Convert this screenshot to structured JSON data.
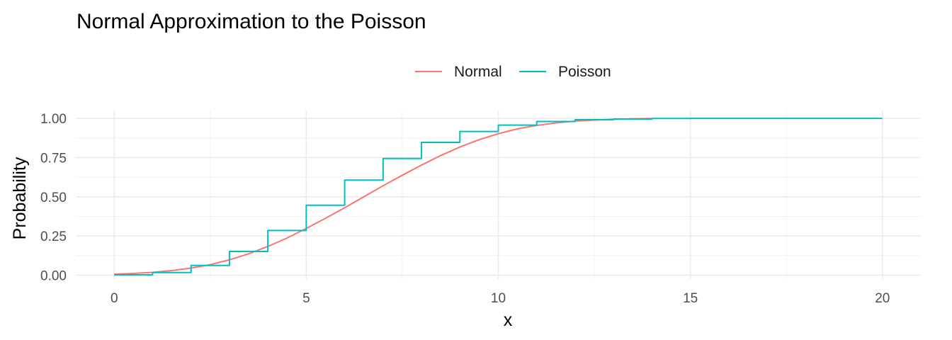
{
  "chart_data": {
    "type": "line",
    "title": "Normal Approximation to the Poisson",
    "xlabel": "x",
    "ylabel": "Probability",
    "xlim": [
      -1,
      21
    ],
    "ylim": [
      -0.025,
      1.05
    ],
    "x_ticks": [
      0,
      5,
      10,
      15,
      20
    ],
    "y_ticks": [
      0.0,
      0.25,
      0.5,
      0.75,
      1.0
    ],
    "x_tick_labels": [
      "0",
      "5",
      "10",
      "15",
      "20"
    ],
    "y_tick_labels": [
      "0.00",
      "0.25",
      "0.50",
      "0.75",
      "1.00"
    ],
    "grid": true,
    "legend_position": "top",
    "series": [
      {
        "name": "Normal",
        "color": "#F8766D",
        "step": false,
        "x": [
          0,
          0.5,
          1,
          1.5,
          2,
          2.5,
          3,
          3.5,
          4,
          4.5,
          5,
          5.5,
          6,
          6.5,
          7,
          7.5,
          8,
          8.5,
          9,
          9.5,
          10,
          10.5,
          11,
          11.5,
          12,
          12.5,
          13,
          13.5,
          14
        ],
        "y": [
          0.006,
          0.011,
          0.018,
          0.029,
          0.045,
          0.067,
          0.098,
          0.136,
          0.183,
          0.237,
          0.298,
          0.363,
          0.43,
          0.5,
          0.57,
          0.637,
          0.702,
          0.763,
          0.817,
          0.864,
          0.902,
          0.933,
          0.955,
          0.971,
          0.982,
          0.989,
          0.994,
          0.997,
          0.999
        ]
      },
      {
        "name": "Poisson",
        "color": "#00BFC4",
        "step": true,
        "x": [
          0,
          1,
          2,
          3,
          4,
          5,
          6,
          7,
          8,
          9,
          10,
          11,
          12,
          13,
          14,
          15,
          16,
          17,
          18,
          19,
          20
        ],
        "y": [
          0.002,
          0.017,
          0.062,
          0.151,
          0.285,
          0.446,
          0.606,
          0.744,
          0.847,
          0.916,
          0.957,
          0.98,
          0.991,
          0.996,
          0.999,
          1.0,
          1.0,
          1.0,
          1.0,
          1.0,
          1.0
        ]
      }
    ]
  }
}
